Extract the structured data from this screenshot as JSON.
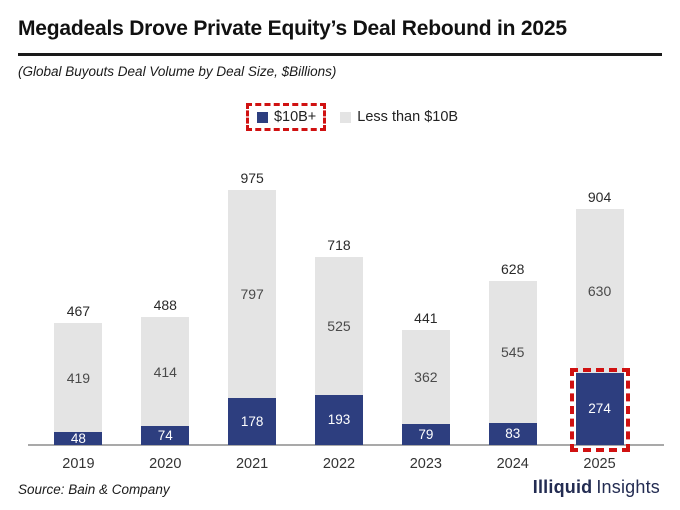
{
  "header": {
    "title": "Megadeals Drove Private Equity’s Deal Rebound in 2025",
    "subtitle": "(Global Buyouts Deal Volume by Deal Size, $Billions)"
  },
  "legend": {
    "items": [
      {
        "label": "$10B+",
        "color": "#2d3e7f",
        "highlighted": true
      },
      {
        "label": "Less than $10B",
        "color": "#e4e4e4",
        "highlighted": false
      }
    ]
  },
  "chart_data": {
    "type": "bar",
    "stacked": true,
    "title": "Megadeals Drove Private Equity’s Deal Rebound in 2025",
    "subtitle": "(Global Buyouts Deal Volume by Deal Size, $Billions)",
    "categories": [
      "2019",
      "2020",
      "2021",
      "2022",
      "2023",
      "2024",
      "2025"
    ],
    "series": [
      {
        "name": "$10B+",
        "color": "#2d3e7f",
        "values": [
          48,
          74,
          178,
          193,
          79,
          83,
          274
        ]
      },
      {
        "name": "Less than $10B",
        "color": "#e4e4e4",
        "values": [
          419,
          414,
          797,
          525,
          362,
          545,
          630
        ]
      }
    ],
    "totals": [
      467,
      488,
      975,
      718,
      441,
      628,
      904
    ],
    "highlight": {
      "category": "2025",
      "series": "$10B+",
      "style": "red-dashed-outline"
    },
    "xlabel": "",
    "ylabel": "",
    "ylim": [
      0,
      1000
    ],
    "grid": false,
    "legend_position": "top-center",
    "value_labels": true
  },
  "footer": {
    "source": "Source: Bain & Company",
    "brand": {
      "bold": "Illiquid",
      "regular": "Insights"
    }
  },
  "colors": {
    "navy": "#2d3e7f",
    "light_gray": "#e4e4e4",
    "highlight_red": "#d01111",
    "axis_line": "#a9a9a9",
    "brand_navy": "#232c52",
    "title_text": "#111111"
  }
}
